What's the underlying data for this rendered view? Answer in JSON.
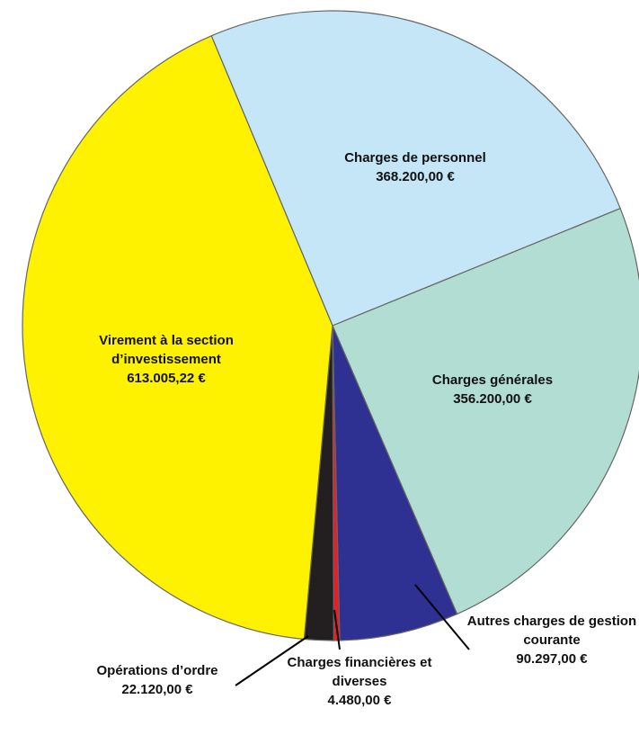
{
  "chart_data": {
    "type": "pie",
    "categories": [
      "Charges de personnel",
      "Charges générales",
      "Autres charges de gestion courante",
      "Charges financières et diverses",
      "Opérations d’ordre",
      "Virement à la section d’investissement"
    ],
    "values": [
      368200,
      356200,
      90297,
      4480,
      22120,
      613005.22
    ],
    "value_labels": [
      "368.200,00 €",
      "356.200,00 €",
      "90.297,00 €",
      "4.480,00 €",
      "22.120,00 €",
      "613.005,22 €"
    ],
    "colors": [
      "#c5e6f7",
      "#b2ddd2",
      "#2e3192",
      "#ed1c24",
      "#231f20",
      "#fff200"
    ]
  }
}
